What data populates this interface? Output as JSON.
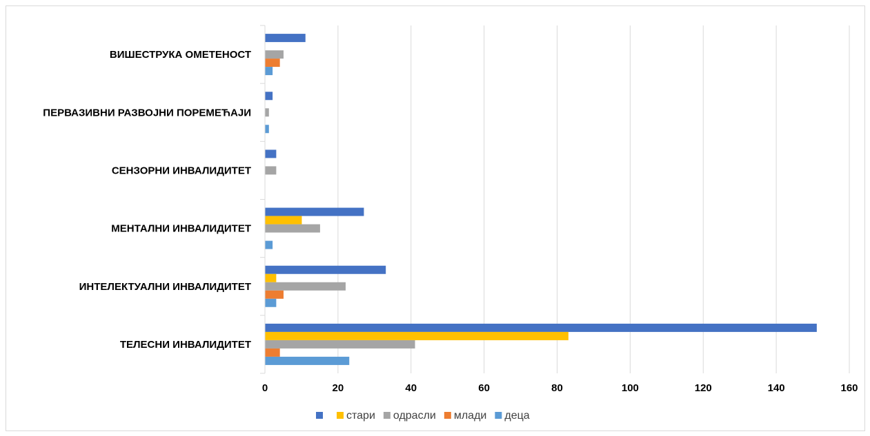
{
  "chart_data": {
    "type": "bar",
    "orientation": "horizontal",
    "categories": [
      "ТЕЛЕСНИ ИНВАЛИДИТЕТ",
      "ИНТЕЛЕКТУАЛНИ ИНВАЛИДИТЕТ",
      "МЕНТАЛНИ ИНВАЛИДИТЕТ",
      "СЕНЗОРНИ ИНВАЛИДИТЕТ",
      "ПЕРВАЗИВНИ РАЗВОЈНИ ПОРЕМЕЋАЈИ",
      "ВИШЕСТРУКА ОМЕТЕНОСТ"
    ],
    "series": [
      {
        "name": "",
        "color": "#4472c4",
        "values": [
          151,
          33,
          27,
          3,
          2,
          11
        ]
      },
      {
        "name": "стари",
        "color": "#ffc000",
        "values": [
          83,
          3,
          10,
          0,
          0,
          0
        ]
      },
      {
        "name": "одрасли",
        "color": "#a5a5a5",
        "values": [
          41,
          22,
          15,
          3,
          1,
          5
        ]
      },
      {
        "name": "млади",
        "color": "#ed7d31",
        "values": [
          4,
          5,
          0,
          0,
          0,
          4
        ]
      },
      {
        "name": "деца",
        "color": "#5b9bd5",
        "values": [
          23,
          3,
          2,
          0,
          1,
          2
        ]
      }
    ],
    "xlim": [
      0,
      160
    ],
    "x_ticks": [
      "0",
      "20",
      "40",
      "60",
      "80",
      "100",
      "120",
      "140",
      "160"
    ],
    "grid": true,
    "legend_position": "bottom"
  }
}
